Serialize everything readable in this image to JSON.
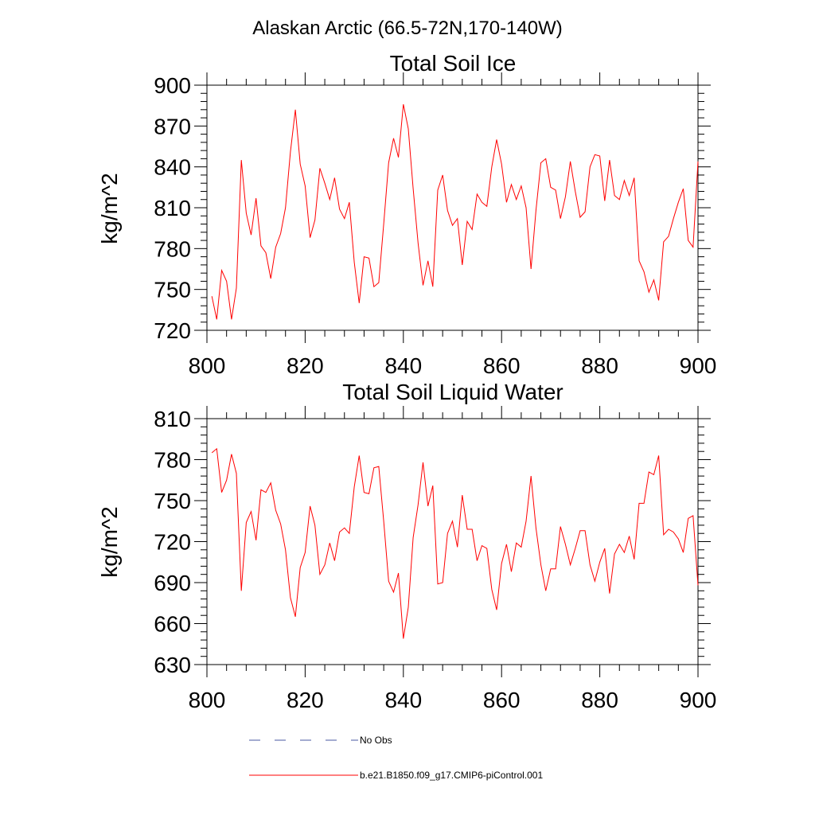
{
  "figure": {
    "main_title": "Alaskan Arctic (66.5-72N,170-140W)"
  },
  "chart_data": [
    {
      "type": "line",
      "title": "Total Soil Ice",
      "xlabel": "",
      "ylabel": "kg/m^2",
      "xlim": [
        800,
        900
      ],
      "ylim": [
        720,
        900
      ],
      "xticks": [
        800,
        820,
        840,
        860,
        880,
        900
      ],
      "yticks": [
        720,
        750,
        780,
        810,
        840,
        870,
        900
      ],
      "grid": false,
      "series": [
        {
          "name": "b.e21.B1850.f09_g17.CMIP6-piControl.001",
          "color": "#ff0000",
          "x": [
            801,
            802,
            803,
            804,
            805,
            806,
            807,
            808,
            809,
            810,
            811,
            812,
            813,
            814,
            815,
            816,
            817,
            818,
            819,
            820,
            821,
            822,
            823,
            824,
            825,
            826,
            827,
            828,
            829,
            830,
            831,
            832,
            833,
            834,
            835,
            836,
            837,
            838,
            839,
            840,
            841,
            842,
            843,
            844,
            845,
            846,
            847,
            848,
            849,
            850,
            851,
            852,
            853,
            854,
            855,
            856,
            857,
            858,
            859,
            860,
            861,
            862,
            863,
            864,
            865,
            866,
            867,
            868,
            869,
            870,
            871,
            872,
            873,
            874,
            875,
            876,
            877,
            878,
            879,
            880,
            881,
            882,
            883,
            884,
            885,
            886,
            887,
            888,
            889,
            890,
            891,
            892,
            893,
            894,
            895,
            896,
            897,
            898,
            899,
            900
          ],
          "values": [
            745,
            728,
            764,
            756,
            728,
            751,
            845,
            806,
            790,
            817,
            782,
            777,
            758,
            781,
            791,
            810,
            851,
            882,
            842,
            826,
            788,
            801,
            839,
            828,
            816,
            832,
            809,
            802,
            814,
            770,
            740,
            774,
            773,
            752,
            755,
            798,
            843,
            861,
            847,
            886,
            868,
            824,
            784,
            753,
            771,
            752,
            823,
            834,
            808,
            797,
            802,
            768,
            800,
            794,
            820,
            814,
            811,
            840,
            860,
            842,
            814,
            827,
            816,
            826,
            810,
            765,
            808,
            843,
            846,
            825,
            823,
            802,
            818,
            844,
            822,
            803,
            807,
            840,
            849,
            848,
            815,
            845,
            819,
            816,
            830,
            819,
            832,
            771,
            763,
            748,
            757,
            742,
            785,
            789,
            802,
            814,
            824,
            786,
            781,
            844
          ]
        }
      ]
    },
    {
      "type": "line",
      "title": "Total Soil Liquid Water",
      "xlabel": "",
      "ylabel": "kg/m^2",
      "xlim": [
        800,
        900
      ],
      "ylim": [
        630,
        810
      ],
      "xticks": [
        800,
        820,
        840,
        860,
        880,
        900
      ],
      "yticks": [
        630,
        660,
        690,
        720,
        750,
        780,
        810
      ],
      "grid": false,
      "series": [
        {
          "name": "b.e21.B1850.f09_g17.CMIP6-piControl.001",
          "color": "#ff0000",
          "x": [
            801,
            802,
            803,
            804,
            805,
            806,
            807,
            808,
            809,
            810,
            811,
            812,
            813,
            814,
            815,
            816,
            817,
            818,
            819,
            820,
            821,
            822,
            823,
            824,
            825,
            826,
            827,
            828,
            829,
            830,
            831,
            832,
            833,
            834,
            835,
            836,
            837,
            838,
            839,
            840,
            841,
            842,
            843,
            844,
            845,
            846,
            847,
            848,
            849,
            850,
            851,
            852,
            853,
            854,
            855,
            856,
            857,
            858,
            859,
            860,
            861,
            862,
            863,
            864,
            865,
            866,
            867,
            868,
            869,
            870,
            871,
            872,
            873,
            874,
            875,
            876,
            877,
            878,
            879,
            880,
            881,
            882,
            883,
            884,
            885,
            886,
            887,
            888,
            889,
            890,
            891,
            892,
            893,
            894,
            895,
            896,
            897,
            898,
            899,
            900
          ],
          "values": [
            785,
            788,
            756,
            765,
            784,
            770,
            684,
            734,
            742,
            721,
            758,
            756,
            763,
            743,
            733,
            714,
            679,
            665,
            701,
            712,
            746,
            732,
            696,
            703,
            719,
            706,
            727,
            730,
            726,
            760,
            783,
            756,
            755,
            774,
            775,
            735,
            691,
            683,
            697,
            649,
            672,
            723,
            747,
            778,
            746,
            761,
            689,
            690,
            726,
            735,
            716,
            754,
            729,
            729,
            706,
            717,
            715,
            685,
            670,
            704,
            718,
            698,
            719,
            716,
            735,
            768,
            730,
            703,
            684,
            700,
            700,
            731,
            718,
            703,
            715,
            728,
            728,
            703,
            691,
            705,
            715,
            682,
            711,
            718,
            712,
            724,
            707,
            748,
            748,
            771,
            769,
            783,
            725,
            729,
            727,
            722,
            712,
            737,
            739,
            688
          ]
        },
        {
          "name": "No Obs",
          "color": "#4a5aa0",
          "x": [],
          "values": []
        }
      ]
    }
  ],
  "legend": {
    "placement": "bottom-center",
    "items": [
      {
        "label": "No Obs",
        "color": "#4a5aa0",
        "dash": "dashed"
      },
      {
        "label": "b.e21.B1850.f09_g17.CMIP6-piControl.001",
        "color": "#ff0000",
        "dash": "solid"
      }
    ]
  }
}
